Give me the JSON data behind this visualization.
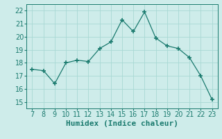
{
  "x": [
    7,
    8,
    9,
    10,
    11,
    12,
    13,
    14,
    15,
    16,
    17,
    18,
    19,
    20,
    21,
    22,
    23
  ],
  "y": [
    17.5,
    17.4,
    16.4,
    18.0,
    18.2,
    18.1,
    19.1,
    19.6,
    21.3,
    20.4,
    21.9,
    19.9,
    19.3,
    19.1,
    18.4,
    17.0,
    15.2
  ],
  "xlabel": "Humidex (Indice chaleur)",
  "ylim": [
    14.5,
    22.5
  ],
  "xlim": [
    6.5,
    23.5
  ],
  "yticks": [
    15,
    16,
    17,
    18,
    19,
    20,
    21,
    22
  ],
  "xticks": [
    7,
    8,
    9,
    10,
    11,
    12,
    13,
    14,
    15,
    16,
    17,
    18,
    19,
    20,
    21,
    22,
    23
  ],
  "line_color": "#1a7a6e",
  "marker": "+",
  "marker_size": 4,
  "bg_color": "#ceecea",
  "grid_color": "#a8d8d4",
  "xlabel_fontsize": 8,
  "tick_fontsize": 7
}
